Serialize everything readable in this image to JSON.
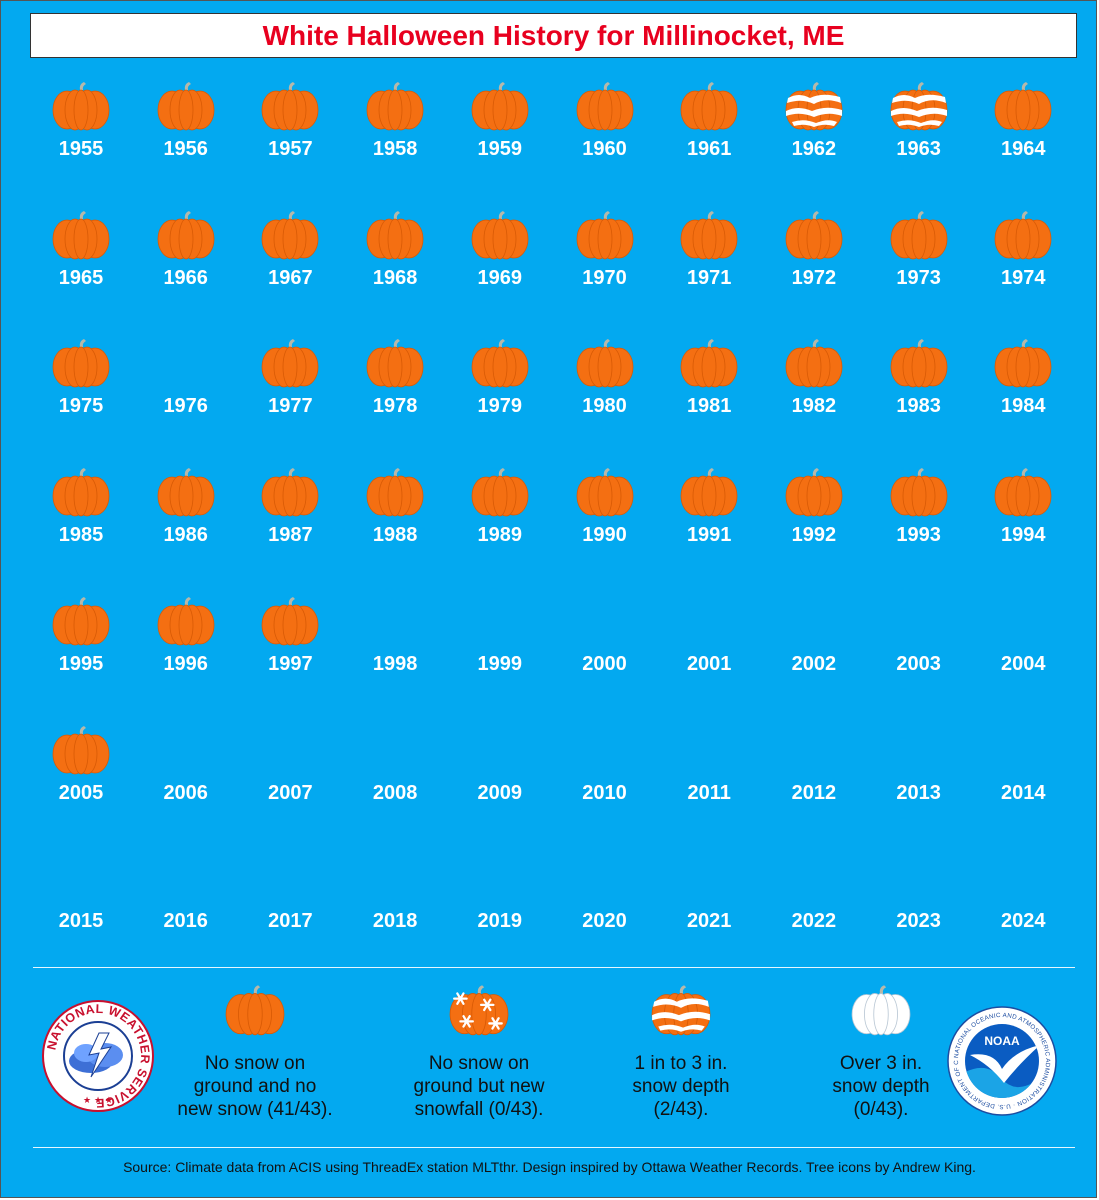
{
  "title": "White Halloween History for Millinocket, ME",
  "colors": {
    "background": "#03a9f0",
    "title_text": "#e8001f",
    "pumpkin": "#f46f12",
    "year_text": "#ffffff"
  },
  "years": [
    {
      "year": "1955",
      "icon": "pumpkin-icon"
    },
    {
      "year": "1956",
      "icon": "pumpkin-icon"
    },
    {
      "year": "1957",
      "icon": "pumpkin-icon"
    },
    {
      "year": "1958",
      "icon": "pumpkin-icon"
    },
    {
      "year": "1959",
      "icon": "pumpkin-icon"
    },
    {
      "year": "1960",
      "icon": "pumpkin-icon"
    },
    {
      "year": "1961",
      "icon": "pumpkin-icon"
    },
    {
      "year": "1962",
      "icon": "snow-depth-pumpkin-icon"
    },
    {
      "year": "1963",
      "icon": "snow-depth-pumpkin-icon"
    },
    {
      "year": "1964",
      "icon": "pumpkin-icon"
    },
    {
      "year": "1965",
      "icon": "pumpkin-icon"
    },
    {
      "year": "1966",
      "icon": "pumpkin-icon"
    },
    {
      "year": "1967",
      "icon": "pumpkin-icon"
    },
    {
      "year": "1968",
      "icon": "pumpkin-icon"
    },
    {
      "year": "1969",
      "icon": "pumpkin-icon"
    },
    {
      "year": "1970",
      "icon": "pumpkin-icon"
    },
    {
      "year": "1971",
      "icon": "pumpkin-icon"
    },
    {
      "year": "1972",
      "icon": "pumpkin-icon"
    },
    {
      "year": "1973",
      "icon": "pumpkin-icon"
    },
    {
      "year": "1974",
      "icon": "pumpkin-icon"
    },
    {
      "year": "1975",
      "icon": "pumpkin-icon"
    },
    {
      "year": "1976",
      "icon": "none"
    },
    {
      "year": "1977",
      "icon": "pumpkin-icon"
    },
    {
      "year": "1978",
      "icon": "pumpkin-icon"
    },
    {
      "year": "1979",
      "icon": "pumpkin-icon"
    },
    {
      "year": "1980",
      "icon": "pumpkin-icon"
    },
    {
      "year": "1981",
      "icon": "pumpkin-icon"
    },
    {
      "year": "1982",
      "icon": "pumpkin-icon"
    },
    {
      "year": "1983",
      "icon": "pumpkin-icon"
    },
    {
      "year": "1984",
      "icon": "pumpkin-icon"
    },
    {
      "year": "1985",
      "icon": "pumpkin-icon"
    },
    {
      "year": "1986",
      "icon": "pumpkin-icon"
    },
    {
      "year": "1987",
      "icon": "pumpkin-icon"
    },
    {
      "year": "1988",
      "icon": "pumpkin-icon"
    },
    {
      "year": "1989",
      "icon": "pumpkin-icon"
    },
    {
      "year": "1990",
      "icon": "pumpkin-icon"
    },
    {
      "year": "1991",
      "icon": "pumpkin-icon"
    },
    {
      "year": "1992",
      "icon": "pumpkin-icon"
    },
    {
      "year": "1993",
      "icon": "pumpkin-icon"
    },
    {
      "year": "1994",
      "icon": "pumpkin-icon"
    },
    {
      "year": "1995",
      "icon": "pumpkin-icon"
    },
    {
      "year": "1996",
      "icon": "pumpkin-icon"
    },
    {
      "year": "1997",
      "icon": "pumpkin-icon"
    },
    {
      "year": "1998",
      "icon": "none"
    },
    {
      "year": "1999",
      "icon": "none"
    },
    {
      "year": "2000",
      "icon": "none"
    },
    {
      "year": "2001",
      "icon": "none"
    },
    {
      "year": "2002",
      "icon": "none"
    },
    {
      "year": "2003",
      "icon": "none"
    },
    {
      "year": "2004",
      "icon": "none"
    },
    {
      "year": "2005",
      "icon": "pumpkin-icon"
    },
    {
      "year": "2006",
      "icon": "none"
    },
    {
      "year": "2007",
      "icon": "none"
    },
    {
      "year": "2008",
      "icon": "none"
    },
    {
      "year": "2009",
      "icon": "none"
    },
    {
      "year": "2010",
      "icon": "none"
    },
    {
      "year": "2011",
      "icon": "none"
    },
    {
      "year": "2012",
      "icon": "none"
    },
    {
      "year": "2013",
      "icon": "none"
    },
    {
      "year": "2014",
      "icon": "none"
    },
    {
      "year": "2015",
      "icon": "none"
    },
    {
      "year": "2016",
      "icon": "none"
    },
    {
      "year": "2017",
      "icon": "none"
    },
    {
      "year": "2018",
      "icon": "none"
    },
    {
      "year": "2019",
      "icon": "none"
    },
    {
      "year": "2020",
      "icon": "none"
    },
    {
      "year": "2021",
      "icon": "none"
    },
    {
      "year": "2022",
      "icon": "none"
    },
    {
      "year": "2023",
      "icon": "none"
    },
    {
      "year": "2024",
      "icon": "none"
    }
  ],
  "legend": [
    {
      "icon": "pumpkin-icon",
      "line1": "No snow on",
      "line2": "ground and no",
      "line3": "new snow (41/43)."
    },
    {
      "icon": "snowfall-pumpkin-icon",
      "line1": "No snow on",
      "line2": "ground but new",
      "line3": "snowfall (0/43)."
    },
    {
      "icon": "snow-depth-pumpkin-icon",
      "line1": "1 in to 3 in.",
      "line2": "snow depth",
      "line3": "(2/43)."
    },
    {
      "icon": "white-pumpkin-icon",
      "line1": "Over 3 in.",
      "line2": "snow depth",
      "line3": "(0/43)."
    }
  ],
  "logos": {
    "nws": "NATIONAL WEATHER SERVICE",
    "noaa": "NOAA",
    "noaa_ring": "NATIONAL OCEANIC AND ATMOSPHERIC ADMINISTRATION · U.S. DEPARTMENT OF COMMERCE"
  },
  "source": "Source: Climate data from ACIS using ThreadEx station MLTthr. Design inspired by Ottawa Weather Records. Tree icons by Andrew King."
}
